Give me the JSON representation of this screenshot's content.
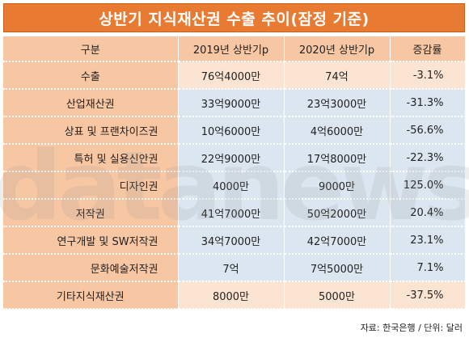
{
  "title": "상반기 지식재산권 수출 추이(잠정 기준)",
  "watermark": "datanews",
  "headers": [
    "구분",
    "2019년 상반기p",
    "2020년 상반기p",
    "증감률"
  ],
  "rows": [
    {
      "label": "수출",
      "v2019": "76억4000만",
      "v2020": "74억",
      "rate": "-3.1%"
    },
    {
      "label": "산업재산권",
      "v2019": "33억9000만",
      "v2020": "23억3000만",
      "rate": "-31.3%"
    },
    {
      "label": "상표 및 프랜차이즈권",
      "v2019": "10억6000만",
      "v2020": "4억6000만",
      "rate": "-56.6%"
    },
    {
      "label": "특허 및 실용신안권",
      "v2019": "22억9000만",
      "v2020": "17억8000만",
      "rate": "-22.3%"
    },
    {
      "label": "디자인권",
      "v2019": "4000만",
      "v2020": "9000만",
      "rate": "125.0%"
    },
    {
      "label": "저작권",
      "v2019": "41억7000만",
      "v2020": "50억2000만",
      "rate": "20.4%"
    },
    {
      "label": "연구개발 및 SW저작권",
      "v2019": "34억7000만",
      "v2020": "42억7000만",
      "rate": "23.1%"
    },
    {
      "label": "문화예술저작권",
      "v2019": "7억",
      "v2020": "7억5000만",
      "rate": "7.1%"
    },
    {
      "label": "기타지식재산권",
      "v2019": "8000만",
      "v2020": "5000만",
      "rate": "-37.5%"
    }
  ],
  "source": "자료: 한국은행 / 단위: 달러"
}
